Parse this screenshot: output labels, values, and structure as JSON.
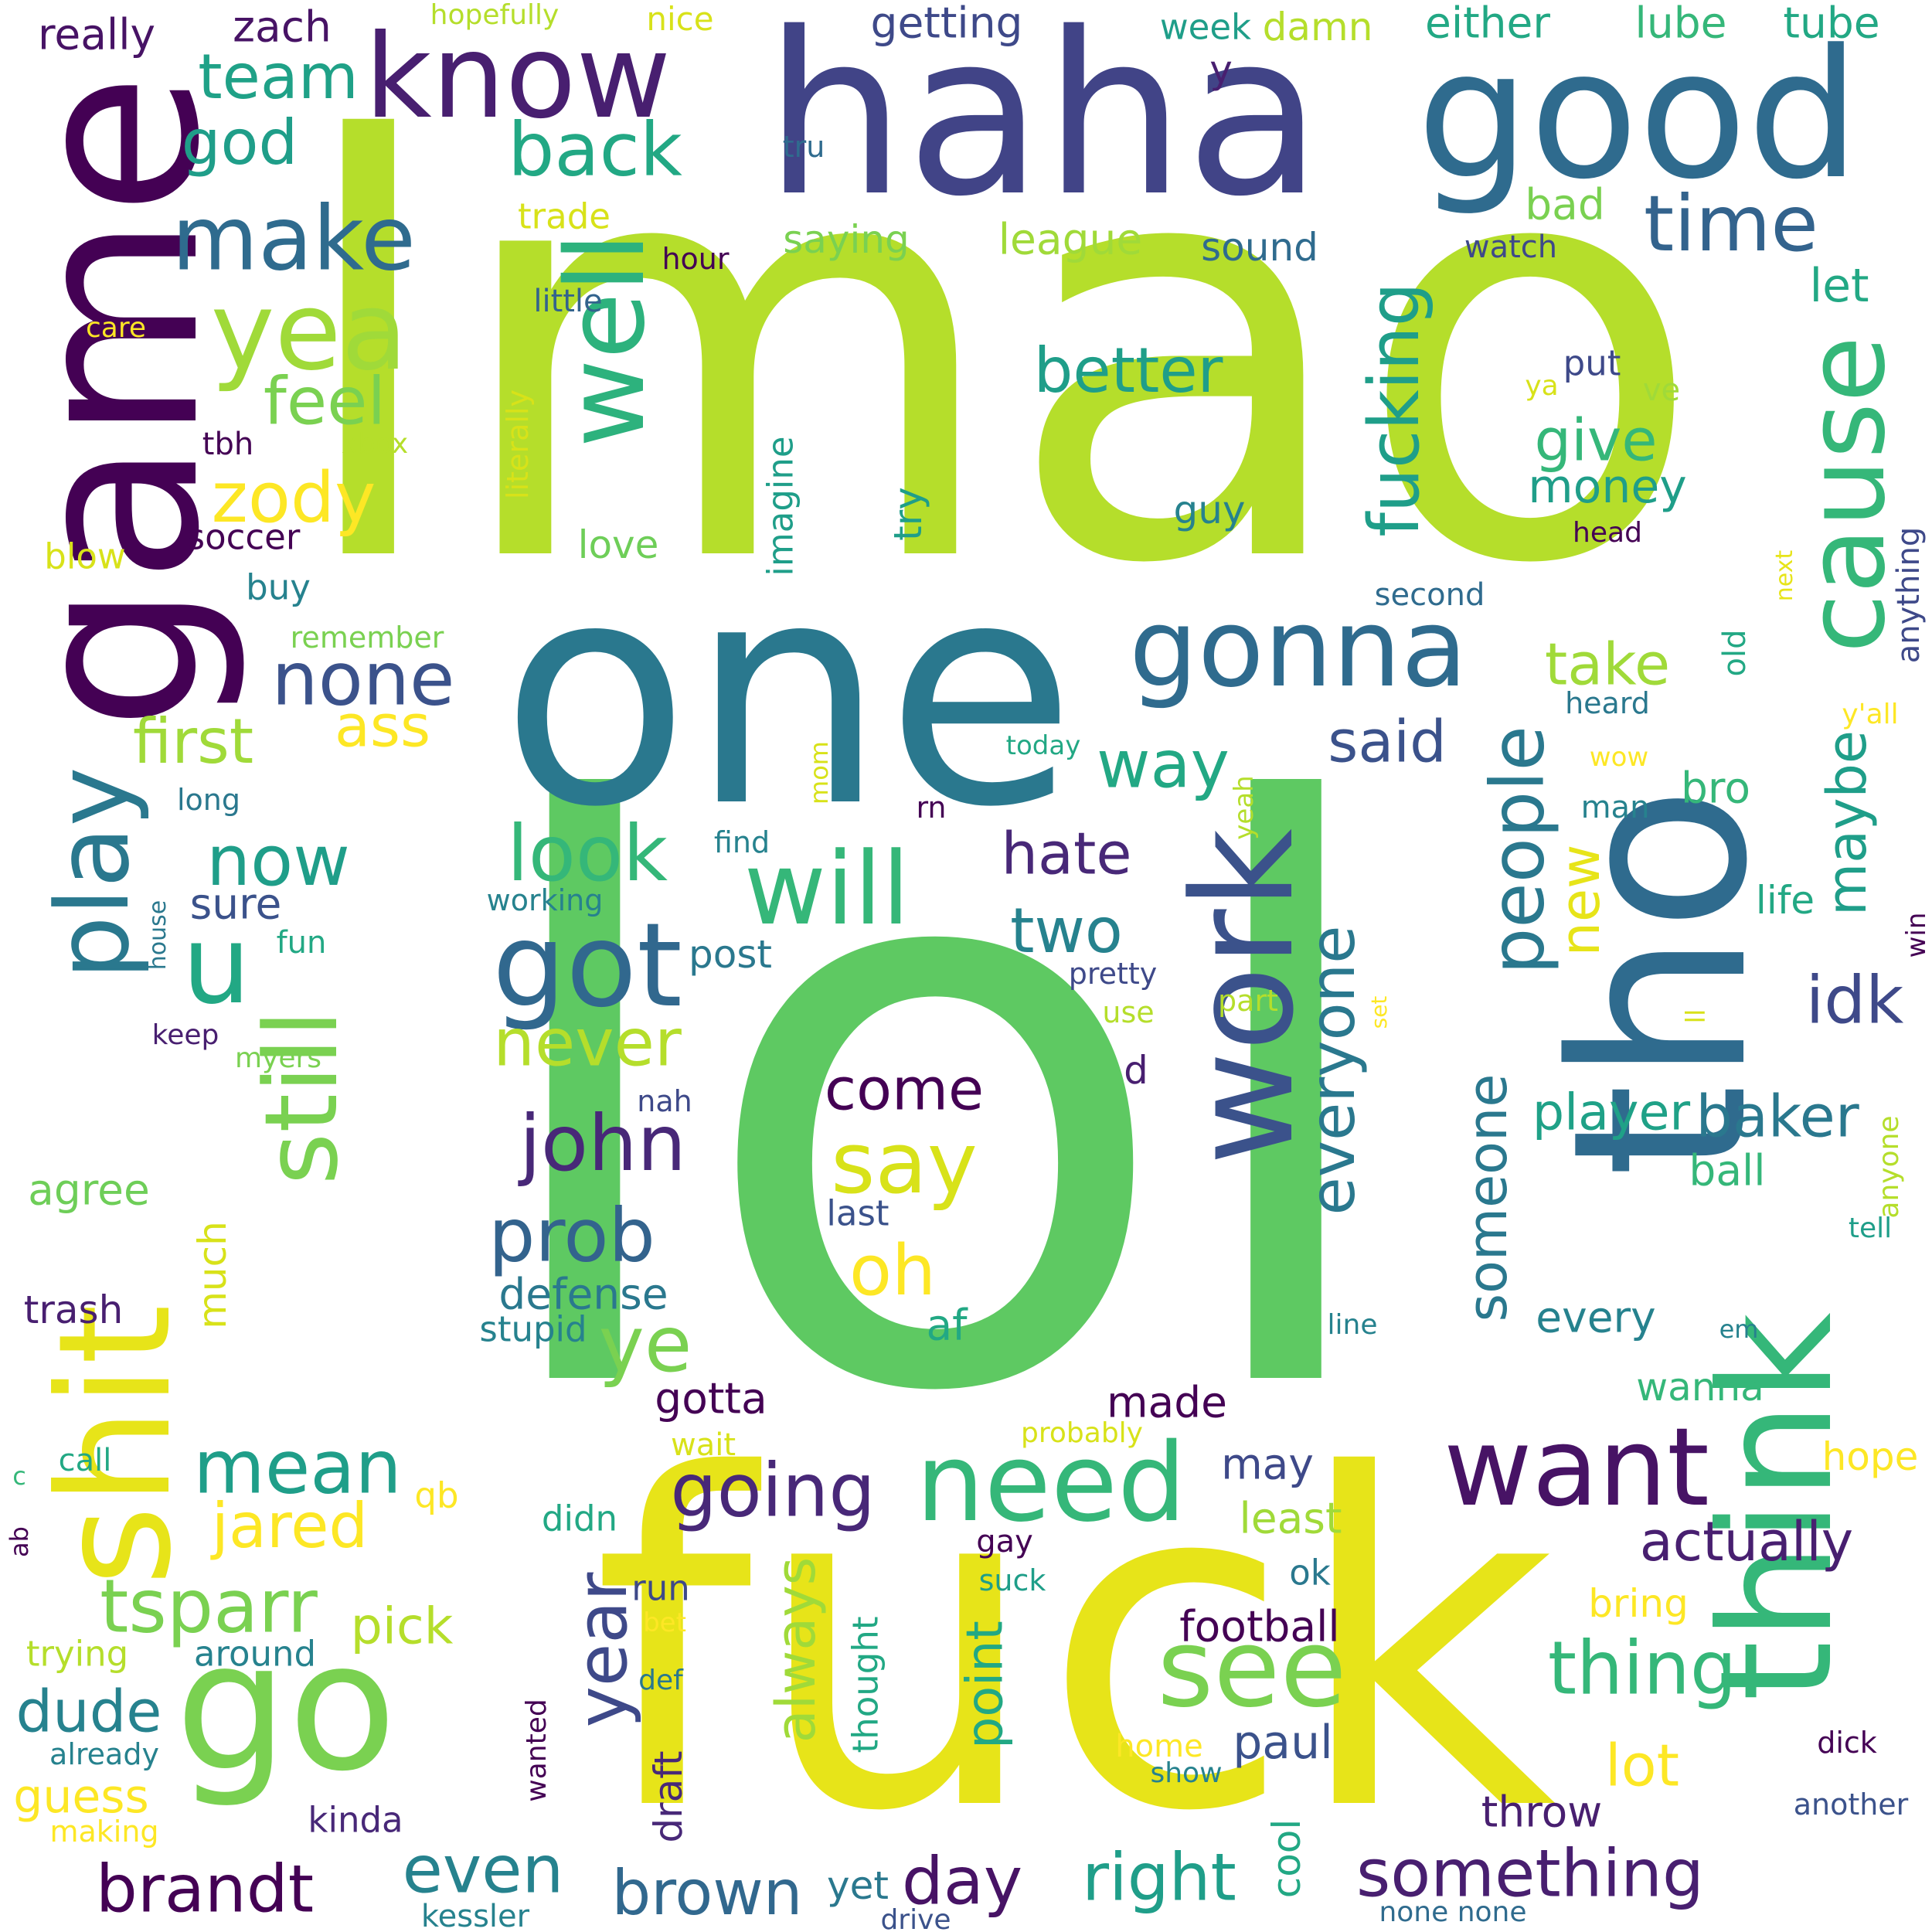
{
  "palette": {
    "c1": "#440154",
    "c2": "#482878",
    "c3": "#3e4989",
    "c4": "#31688e",
    "c5": "#26828e",
    "c6": "#1f9e89",
    "c7": "#35b779",
    "c8": "#6ece58",
    "c9": "#b5de2b",
    "c10": "#fde725",
    "c11": "#e7e419",
    "c12": "#5ec962"
  },
  "words": [
    {
      "text": "lol",
      "color": "#5ec962"
    },
    {
      "text": "lmao",
      "color": "#b5de2b"
    },
    {
      "text": "fuck",
      "color": "#e7e419"
    },
    {
      "text": "one",
      "color": "#2a788e"
    },
    {
      "text": "haha",
      "color": "#414487"
    },
    {
      "text": "good",
      "color": "#2f6b8e"
    },
    {
      "text": "game",
      "color": "#440154"
    },
    {
      "text": "tho",
      "color": "#2f6b8e"
    },
    {
      "text": "work",
      "color": "#3b528b"
    },
    {
      "text": "think",
      "color": "#35b779"
    },
    {
      "text": "shit",
      "color": "#e7e419"
    },
    {
      "text": "go",
      "color": "#7ad151"
    },
    {
      "text": "know",
      "color": "#481f70"
    },
    {
      "text": "make",
      "color": "#2f6b8e"
    },
    {
      "text": "yea",
      "color": "#a0da39"
    },
    {
      "text": "well",
      "color": "#2db27d"
    },
    {
      "text": "gonna",
      "color": "#2f6b8e"
    },
    {
      "text": "cause",
      "color": "#35b779"
    },
    {
      "text": "need",
      "color": "#35b779"
    },
    {
      "text": "want",
      "color": "#471365"
    },
    {
      "text": "see",
      "color": "#7ad151"
    },
    {
      "text": "got",
      "color": "#31688e"
    },
    {
      "text": "will",
      "color": "#35b779"
    },
    {
      "text": "play",
      "color": "#2a788e"
    },
    {
      "text": "u",
      "color": "#22a884"
    },
    {
      "text": "still",
      "color": "#7ad151"
    },
    {
      "text": "team",
      "color": "#1fa187"
    },
    {
      "text": "back",
      "color": "#22a884"
    },
    {
      "text": "god",
      "color": "#1f9e89"
    },
    {
      "text": "time",
      "color": "#33638d"
    },
    {
      "text": "fucking",
      "color": "#1f9e89"
    },
    {
      "text": "feel",
      "color": "#7ad151"
    },
    {
      "text": "zody",
      "color": "#fde725"
    },
    {
      "text": "better",
      "color": "#1f9e89"
    },
    {
      "text": "none",
      "color": "#3b528b"
    },
    {
      "text": "ass",
      "color": "#fde725"
    },
    {
      "text": "first",
      "color": "#a0da39"
    },
    {
      "text": "now",
      "color": "#1f9e89"
    },
    {
      "text": "look",
      "color": "#35b779"
    },
    {
      "text": "way",
      "color": "#22a884"
    },
    {
      "text": "said",
      "color": "#3b528b"
    },
    {
      "text": "take",
      "color": "#a0da39"
    },
    {
      "text": "people",
      "color": "#2a788e"
    },
    {
      "text": "give",
      "color": "#35b779"
    },
    {
      "text": "money",
      "color": "#1f9e89"
    },
    {
      "text": "hate",
      "color": "#482878"
    },
    {
      "text": "two",
      "color": "#26828e"
    },
    {
      "text": "idk",
      "color": "#3e4989"
    },
    {
      "text": "maybe",
      "color": "#1f9e89"
    },
    {
      "text": "new",
      "color": "#e7e419"
    },
    {
      "text": "everyone",
      "color": "#2a788e"
    },
    {
      "text": "john",
      "color": "#482878"
    },
    {
      "text": "say",
      "color": "#d8e219"
    },
    {
      "text": "come",
      "color": "#440154"
    },
    {
      "text": "never",
      "color": "#b5de2b"
    },
    {
      "text": "prob",
      "color": "#33638d"
    },
    {
      "text": "oh",
      "color": "#fde725"
    },
    {
      "text": "ye",
      "color": "#7ad151"
    },
    {
      "text": "someone",
      "color": "#2a788e"
    },
    {
      "text": "player",
      "color": "#1fa187"
    },
    {
      "text": "baker",
      "color": "#2a788e"
    },
    {
      "text": "mean",
      "color": "#1f9e89"
    },
    {
      "text": "going",
      "color": "#482878"
    },
    {
      "text": "jared",
      "color": "#fde725"
    },
    {
      "text": "tsparr",
      "color": "#7ad151"
    },
    {
      "text": "actually",
      "color": "#481f70"
    },
    {
      "text": "thing",
      "color": "#35b779"
    },
    {
      "text": "year",
      "color": "#3e4989"
    },
    {
      "text": "always",
      "color": "#a0da39"
    },
    {
      "text": "brandt",
      "color": "#440154"
    },
    {
      "text": "even",
      "color": "#26828e"
    },
    {
      "text": "brown",
      "color": "#31688e"
    },
    {
      "text": "day",
      "color": "#471365"
    },
    {
      "text": "right",
      "color": "#1f9e89"
    },
    {
      "text": "something",
      "color": "#481f70"
    },
    {
      "text": "dude",
      "color": "#26828e"
    },
    {
      "text": "lot",
      "color": "#fde725"
    },
    {
      "text": "paul",
      "color": "#3b528b"
    },
    {
      "text": "point",
      "color": "#22a884"
    },
    {
      "text": "defense",
      "color": "#2a788e"
    },
    {
      "text": "stupid",
      "color": "#26828e"
    },
    {
      "text": "af",
      "color": "#22a884"
    },
    {
      "text": "gotta",
      "color": "#440154"
    },
    {
      "text": "made",
      "color": "#440154"
    },
    {
      "text": "football",
      "color": "#440154"
    },
    {
      "text": "pick",
      "color": "#b5de2b"
    },
    {
      "text": "guess",
      "color": "#fde725"
    },
    {
      "text": "kinda",
      "color": "#482878"
    },
    {
      "text": "draft",
      "color": "#482878"
    },
    {
      "text": "cool",
      "color": "#22a884"
    },
    {
      "text": "throw",
      "color": "#481f70"
    },
    {
      "text": "wanna",
      "color": "#35b779"
    },
    {
      "text": "every",
      "color": "#26828e"
    },
    {
      "text": "ball",
      "color": "#35b779"
    },
    {
      "text": "least",
      "color": "#a0da39"
    },
    {
      "text": "may",
      "color": "#3e4989"
    },
    {
      "text": "hope",
      "color": "#fde725"
    },
    {
      "text": "bring",
      "color": "#fde725"
    },
    {
      "text": "ok",
      "color": "#2a788e"
    },
    {
      "text": "really",
      "color": "#471365"
    },
    {
      "text": "zach",
      "color": "#471365"
    },
    {
      "text": "getting",
      "color": "#3e4989"
    },
    {
      "text": "week",
      "color": "#1f9e89"
    },
    {
      "text": "damn",
      "color": "#b5de2b"
    },
    {
      "text": "either",
      "color": "#22a884"
    },
    {
      "text": "lube",
      "color": "#35b779"
    },
    {
      "text": "tube",
      "color": "#22a884"
    },
    {
      "text": "hopefully",
      "color": "#b5de2b"
    },
    {
      "text": "nice",
      "color": "#d8e219"
    },
    {
      "text": "y",
      "color": "#481f70"
    },
    {
      "text": "tru",
      "color": "#2f6b8e"
    },
    {
      "text": "bad",
      "color": "#7ad151"
    },
    {
      "text": "trade",
      "color": "#d8e219"
    },
    {
      "text": "saying",
      "color": "#7ad151"
    },
    {
      "text": "league",
      "color": "#a0da39"
    },
    {
      "text": "sound",
      "color": "#2f6b8e"
    },
    {
      "text": "watch",
      "color": "#3e4989"
    },
    {
      "text": "hour",
      "color": "#440154"
    },
    {
      "text": "little",
      "color": "#33638d"
    },
    {
      "text": "let",
      "color": "#22a884"
    },
    {
      "text": "care",
      "color": "#fde725"
    },
    {
      "text": "tbh",
      "color": "#440154"
    },
    {
      "text": "xbox",
      "color": "#b5de2b"
    },
    {
      "text": "literally",
      "color": "#d8e219"
    },
    {
      "text": "imagine",
      "color": "#1f9e89"
    },
    {
      "text": "put",
      "color": "#3e4989"
    },
    {
      "text": "ya",
      "color": "#d8e219"
    },
    {
      "text": "ve",
      "color": "#a0da39"
    },
    {
      "text": "soccer",
      "color": "#440154"
    },
    {
      "text": "love",
      "color": "#6ece58"
    },
    {
      "text": "try",
      "color": "#1f9e89"
    },
    {
      "text": "guy",
      "color": "#26828e"
    },
    {
      "text": "blow",
      "color": "#d8e219"
    },
    {
      "text": "buy",
      "color": "#26828e"
    },
    {
      "text": "head",
      "color": "#440154"
    },
    {
      "text": "anything",
      "color": "#3e4989"
    },
    {
      "text": "second",
      "color": "#2f6b8e"
    },
    {
      "text": "next",
      "color": "#e7e419"
    },
    {
      "text": "remember",
      "color": "#7ad151"
    },
    {
      "text": "old",
      "color": "#22a884"
    },
    {
      "text": "heard",
      "color": "#2a788e"
    },
    {
      "text": "y'all",
      "color": "#fde725"
    },
    {
      "text": "today",
      "color": "#22a884"
    },
    {
      "text": "wow",
      "color": "#fde725"
    },
    {
      "text": "long",
      "color": "#2a788e"
    },
    {
      "text": "mom",
      "color": "#d8e219"
    },
    {
      "text": "rn",
      "color": "#440154"
    },
    {
      "text": "yeah",
      "color": "#b5de2b"
    },
    {
      "text": "man",
      "color": "#26828e"
    },
    {
      "text": "bro",
      "color": "#35b779"
    },
    {
      "text": "find",
      "color": "#26828e"
    },
    {
      "text": "working",
      "color": "#26828e"
    },
    {
      "text": "sure",
      "color": "#3b528b"
    },
    {
      "text": "house",
      "color": "#2a788e"
    },
    {
      "text": "fun",
      "color": "#22a884"
    },
    {
      "text": "post",
      "color": "#2a788e"
    },
    {
      "text": "life",
      "color": "#22a884"
    },
    {
      "text": "win",
      "color": "#440154"
    },
    {
      "text": "pretty",
      "color": "#3e4989"
    },
    {
      "text": "use",
      "color": "#b5de2b"
    },
    {
      "text": "part",
      "color": "#b5de2b"
    },
    {
      "text": "set",
      "color": "#fde725"
    },
    {
      "text": "ll",
      "color": "#d8e219"
    },
    {
      "text": "keep",
      "color": "#481f70"
    },
    {
      "text": "myers",
      "color": "#7ad151"
    },
    {
      "text": "d",
      "color": "#481f70"
    },
    {
      "text": "anyone",
      "color": "#b5de2b"
    },
    {
      "text": "nah",
      "color": "#3e4989"
    },
    {
      "text": "tell",
      "color": "#1f9e89"
    },
    {
      "text": "last",
      "color": "#3b528b"
    },
    {
      "text": "agree",
      "color": "#6ece58"
    },
    {
      "text": "much",
      "color": "#d8e219"
    },
    {
      "text": "trash",
      "color": "#481f70"
    },
    {
      "text": "line",
      "color": "#26828e"
    },
    {
      "text": "em",
      "color": "#26828e"
    },
    {
      "text": "wait",
      "color": "#d8e219"
    },
    {
      "text": "probably",
      "color": "#d8e219"
    },
    {
      "text": "c",
      "color": "#35b779"
    },
    {
      "text": "call",
      "color": "#22a884"
    },
    {
      "text": "qb",
      "color": "#fde725"
    },
    {
      "text": "didn",
      "color": "#22a884"
    },
    {
      "text": "gay",
      "color": "#440154"
    },
    {
      "text": "suck",
      "color": "#1f9e89"
    },
    {
      "text": "ab",
      "color": "#440154"
    },
    {
      "text": "run",
      "color": "#3e4989"
    },
    {
      "text": "bet",
      "color": "#fde725"
    },
    {
      "text": "trying",
      "color": "#b5de2b"
    },
    {
      "text": "around",
      "color": "#26828e"
    },
    {
      "text": "thought",
      "color": "#22a884"
    },
    {
      "text": "def",
      "color": "#2a788e"
    },
    {
      "text": "wanted",
      "color": "#440154"
    },
    {
      "text": "already",
      "color": "#26828e"
    },
    {
      "text": "home",
      "color": "#fde725"
    },
    {
      "text": "show",
      "color": "#26828e"
    },
    {
      "text": "dick",
      "color": "#440154"
    },
    {
      "text": "another",
      "color": "#3b528b"
    },
    {
      "text": "making",
      "color": "#fde725"
    },
    {
      "text": "yet",
      "color": "#2a788e"
    },
    {
      "text": "kessler",
      "color": "#26828e"
    },
    {
      "text": "drive",
      "color": "#3b528b"
    },
    {
      "text": "none none",
      "color": "#2f6b8e"
    }
  ]
}
